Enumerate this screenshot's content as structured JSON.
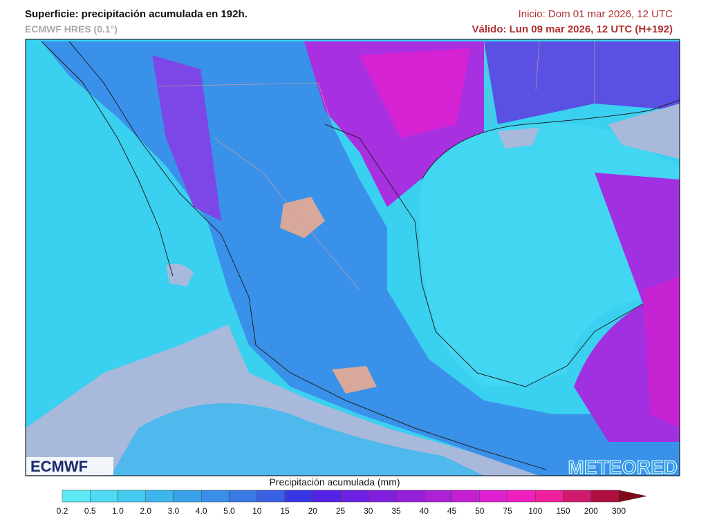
{
  "header": {
    "title": "Superficie: precipitación acumulada en 192h.",
    "subtitle": "ECMWF HRES (0.1°)",
    "init": "Inicio: Dom 01 mar 2026, 12 UTC",
    "valid": "Válido: Lun 09 mar 2026, 12 UTC (H+192)"
  },
  "logos": {
    "left": "ECMWF",
    "right": "METEORED"
  },
  "legend": {
    "title": "Precipitación acumulada (mm)",
    "ticks": [
      "0.2",
      "0.5",
      "1.0",
      "2.0",
      "3.0",
      "4.0",
      "5.0",
      "10",
      "15",
      "20",
      "25",
      "30",
      "35",
      "40",
      "45",
      "50",
      "75",
      "100",
      "150",
      "200",
      "300"
    ],
    "colors": [
      "#5ee9f6",
      "#4fdaf3",
      "#44c9ef",
      "#3db6ec",
      "#3aa2ea",
      "#3a8ee8",
      "#3a78e6",
      "#3a60e4",
      "#3a36e6",
      "#5422e6",
      "#6c20e2",
      "#8020de",
      "#9620da",
      "#ac20d6",
      "#c420d2",
      "#de20d0",
      "#f020c0",
      "#f0209a",
      "#d01a70",
      "#b01040",
      "#80081a"
    ]
  }
}
